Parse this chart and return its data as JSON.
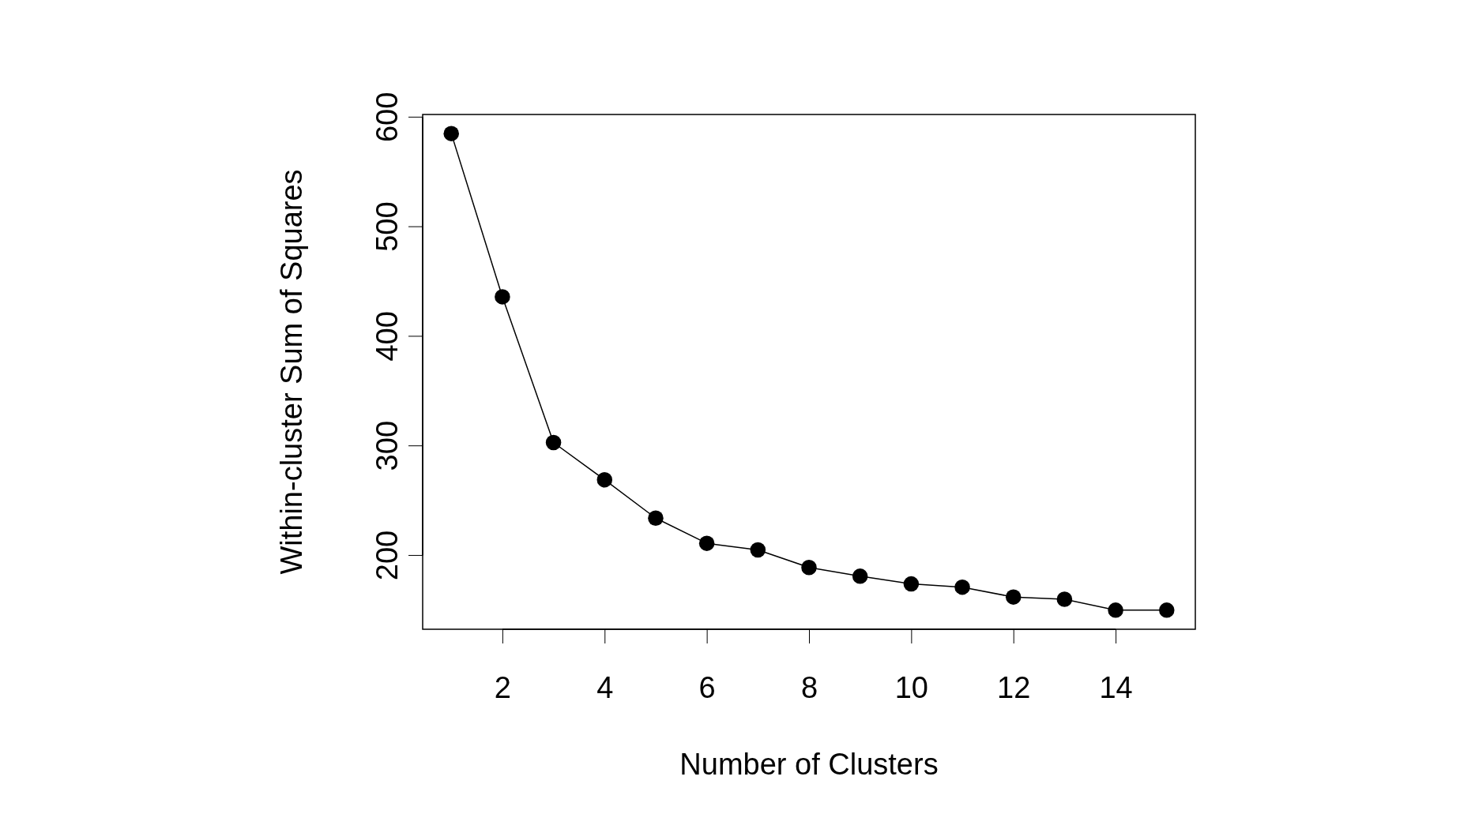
{
  "chart_data": {
    "type": "line",
    "xlabel": "Number of Clusters",
    "ylabel": "Within-cluster Sum of Squares",
    "x": [
      1,
      2,
      3,
      4,
      5,
      6,
      7,
      8,
      9,
      10,
      11,
      12,
      13,
      14,
      15
    ],
    "series": [
      {
        "color": "#000000",
        "values": [
          585,
          436,
          303,
          269,
          234,
          211,
          205,
          189,
          181,
          174,
          171,
          162,
          160,
          150,
          150
        ]
      }
    ],
    "xlim": [
      0.44,
      15.56
    ],
    "ylim": [
      132.6,
      602.4
    ],
    "xticks": [
      2,
      4,
      6,
      8,
      10,
      12,
      14
    ],
    "yticks": [
      200,
      300,
      400,
      500,
      600
    ],
    "marker": "circle",
    "line_style": "solid",
    "grid": false
  }
}
